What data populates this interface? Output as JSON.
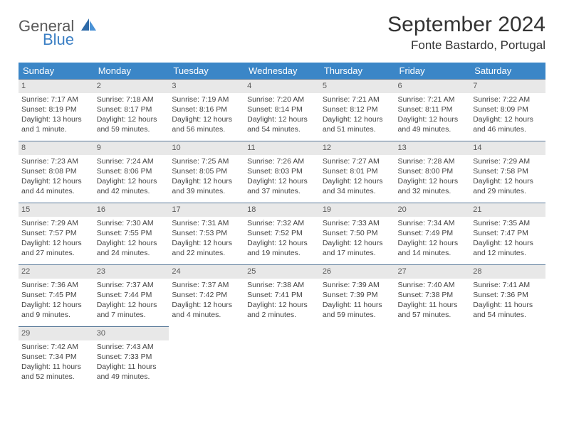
{
  "logo": {
    "general": "General",
    "blue": "Blue"
  },
  "title": "September 2024",
  "location": "Fonte Bastardo, Portugal",
  "colors": {
    "header_bg": "#3b86c7",
    "header_text": "#ffffff",
    "daynum_bg": "#e8e8e8",
    "daynum_border": "#5a7a9a",
    "text": "#444444",
    "logo_gray": "#5a5a5a",
    "logo_blue": "#3b7fc4",
    "background": "#ffffff"
  },
  "typography": {
    "title_fontsize": 30,
    "location_fontsize": 17,
    "weekday_fontsize": 13,
    "cell_fontsize": 10.5,
    "daynum_fontsize": 11
  },
  "weekdays": [
    "Sunday",
    "Monday",
    "Tuesday",
    "Wednesday",
    "Thursday",
    "Friday",
    "Saturday"
  ],
  "weeks": [
    [
      {
        "num": "1",
        "sunrise": "7:17 AM",
        "sunset": "8:19 PM",
        "daylight": "13 hours and 1 minute."
      },
      {
        "num": "2",
        "sunrise": "7:18 AM",
        "sunset": "8:17 PM",
        "daylight": "12 hours and 59 minutes."
      },
      {
        "num": "3",
        "sunrise": "7:19 AM",
        "sunset": "8:16 PM",
        "daylight": "12 hours and 56 minutes."
      },
      {
        "num": "4",
        "sunrise": "7:20 AM",
        "sunset": "8:14 PM",
        "daylight": "12 hours and 54 minutes."
      },
      {
        "num": "5",
        "sunrise": "7:21 AM",
        "sunset": "8:12 PM",
        "daylight": "12 hours and 51 minutes."
      },
      {
        "num": "6",
        "sunrise": "7:21 AM",
        "sunset": "8:11 PM",
        "daylight": "12 hours and 49 minutes."
      },
      {
        "num": "7",
        "sunrise": "7:22 AM",
        "sunset": "8:09 PM",
        "daylight": "12 hours and 46 minutes."
      }
    ],
    [
      {
        "num": "8",
        "sunrise": "7:23 AM",
        "sunset": "8:08 PM",
        "daylight": "12 hours and 44 minutes."
      },
      {
        "num": "9",
        "sunrise": "7:24 AM",
        "sunset": "8:06 PM",
        "daylight": "12 hours and 42 minutes."
      },
      {
        "num": "10",
        "sunrise": "7:25 AM",
        "sunset": "8:05 PM",
        "daylight": "12 hours and 39 minutes."
      },
      {
        "num": "11",
        "sunrise": "7:26 AM",
        "sunset": "8:03 PM",
        "daylight": "12 hours and 37 minutes."
      },
      {
        "num": "12",
        "sunrise": "7:27 AM",
        "sunset": "8:01 PM",
        "daylight": "12 hours and 34 minutes."
      },
      {
        "num": "13",
        "sunrise": "7:28 AM",
        "sunset": "8:00 PM",
        "daylight": "12 hours and 32 minutes."
      },
      {
        "num": "14",
        "sunrise": "7:29 AM",
        "sunset": "7:58 PM",
        "daylight": "12 hours and 29 minutes."
      }
    ],
    [
      {
        "num": "15",
        "sunrise": "7:29 AM",
        "sunset": "7:57 PM",
        "daylight": "12 hours and 27 minutes."
      },
      {
        "num": "16",
        "sunrise": "7:30 AM",
        "sunset": "7:55 PM",
        "daylight": "12 hours and 24 minutes."
      },
      {
        "num": "17",
        "sunrise": "7:31 AM",
        "sunset": "7:53 PM",
        "daylight": "12 hours and 22 minutes."
      },
      {
        "num": "18",
        "sunrise": "7:32 AM",
        "sunset": "7:52 PM",
        "daylight": "12 hours and 19 minutes."
      },
      {
        "num": "19",
        "sunrise": "7:33 AM",
        "sunset": "7:50 PM",
        "daylight": "12 hours and 17 minutes."
      },
      {
        "num": "20",
        "sunrise": "7:34 AM",
        "sunset": "7:49 PM",
        "daylight": "12 hours and 14 minutes."
      },
      {
        "num": "21",
        "sunrise": "7:35 AM",
        "sunset": "7:47 PM",
        "daylight": "12 hours and 12 minutes."
      }
    ],
    [
      {
        "num": "22",
        "sunrise": "7:36 AM",
        "sunset": "7:45 PM",
        "daylight": "12 hours and 9 minutes."
      },
      {
        "num": "23",
        "sunrise": "7:37 AM",
        "sunset": "7:44 PM",
        "daylight": "12 hours and 7 minutes."
      },
      {
        "num": "24",
        "sunrise": "7:37 AM",
        "sunset": "7:42 PM",
        "daylight": "12 hours and 4 minutes."
      },
      {
        "num": "25",
        "sunrise": "7:38 AM",
        "sunset": "7:41 PM",
        "daylight": "12 hours and 2 minutes."
      },
      {
        "num": "26",
        "sunrise": "7:39 AM",
        "sunset": "7:39 PM",
        "daylight": "11 hours and 59 minutes."
      },
      {
        "num": "27",
        "sunrise": "7:40 AM",
        "sunset": "7:38 PM",
        "daylight": "11 hours and 57 minutes."
      },
      {
        "num": "28",
        "sunrise": "7:41 AM",
        "sunset": "7:36 PM",
        "daylight": "11 hours and 54 minutes."
      }
    ],
    [
      {
        "num": "29",
        "sunrise": "7:42 AM",
        "sunset": "7:34 PM",
        "daylight": "11 hours and 52 minutes."
      },
      {
        "num": "30",
        "sunrise": "7:43 AM",
        "sunset": "7:33 PM",
        "daylight": "11 hours and 49 minutes."
      },
      null,
      null,
      null,
      null,
      null
    ]
  ]
}
